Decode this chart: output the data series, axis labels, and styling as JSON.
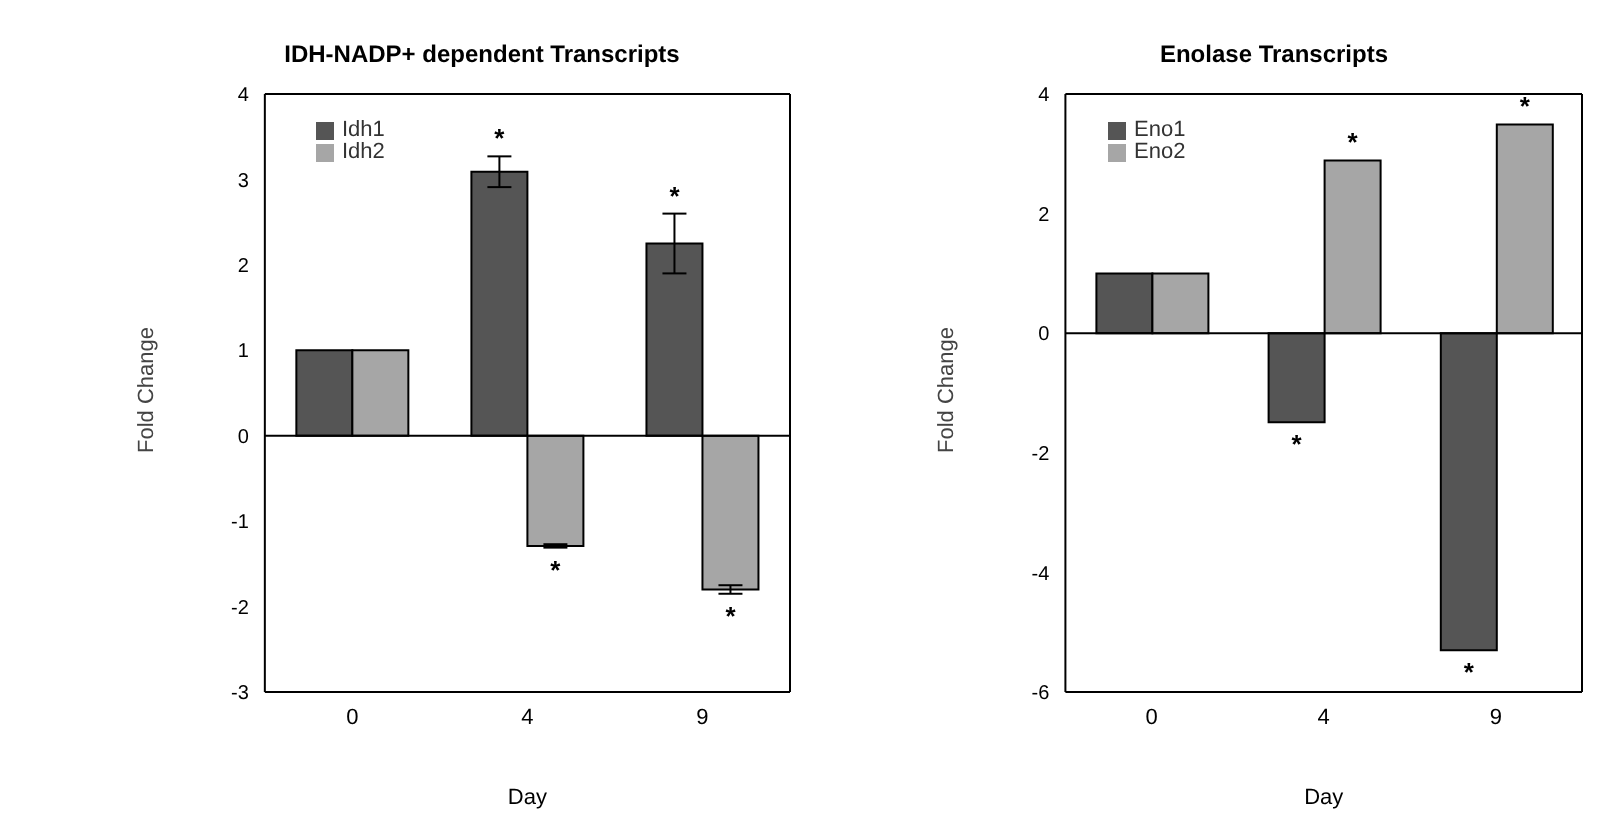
{
  "chart_data": [
    {
      "type": "bar",
      "title": "IDH-NADP+ dependent Transcripts",
      "xlabel": "Day",
      "ylabel": "Fold Change",
      "categories": [
        "0",
        "4",
        "9"
      ],
      "series": [
        {
          "name": "Idh1",
          "color": "#555555",
          "values": [
            1,
            3.09,
            2.25
          ],
          "errors": [
            null,
            0.18,
            0.35
          ],
          "value_labels": [
            null,
            "*",
            "*"
          ]
        },
        {
          "name": "Idh2",
          "color": "#a6a6a6",
          "values": [
            1,
            -1.29,
            -1.8
          ],
          "errors": [
            null,
            0.02,
            0.05
          ],
          "value_labels": [
            null,
            "*",
            "*"
          ]
        }
      ],
      "ylim": [
        -3,
        4
      ],
      "yticks": [
        -3,
        -2,
        -1,
        0,
        1,
        2,
        3,
        4
      ],
      "grid": false,
      "legend": "top left",
      "ref_lines": [
        {
          "axis": "y",
          "value": 0
        }
      ]
    },
    {
      "type": "bar",
      "title": "Enolase Transcripts",
      "xlabel": "Day",
      "ylabel": "Fold Change",
      "categories": [
        "0",
        "4",
        "9"
      ],
      "series": [
        {
          "name": "Eno1",
          "color": "#555555",
          "values": [
            1,
            -1.49,
            -5.3
          ],
          "value_labels": [
            null,
            "*",
            "*"
          ]
        },
        {
          "name": "Eno2",
          "color": "#a6a6a6",
          "values": [
            1,
            2.89,
            3.49
          ],
          "value_labels": [
            null,
            "*",
            "*"
          ]
        }
      ],
      "ylim": [
        -6,
        4
      ],
      "yticks": [
        -6,
        -4,
        -2,
        0,
        2,
        4
      ],
      "grid": false,
      "legend": "top left",
      "ref_lines": [
        {
          "axis": "y",
          "value": 0
        }
      ]
    }
  ]
}
